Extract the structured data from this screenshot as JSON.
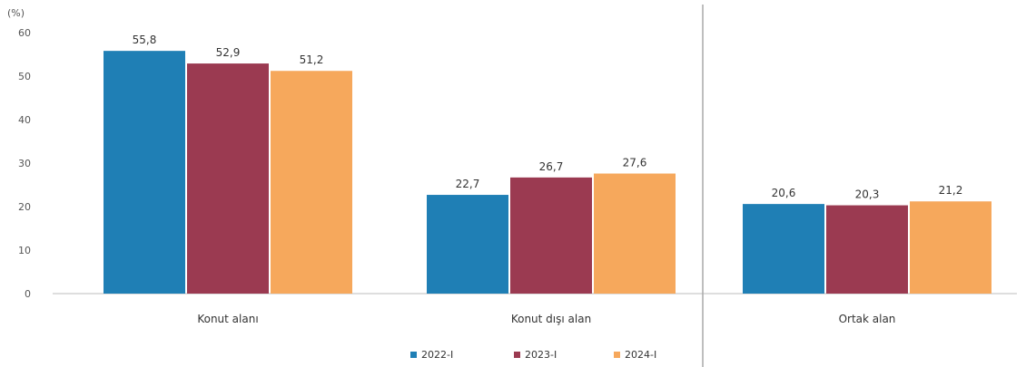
{
  "chart_data": {
    "type": "bar",
    "unit_label": "(%)",
    "categories": [
      "Konut alanı",
      "Konut dışı alan",
      "Ortak alan"
    ],
    "series": [
      {
        "name": "2022-I",
        "color": "#1f7fb5",
        "values": [
          55.8,
          22.7,
          20.6
        ],
        "labels": [
          "55,8",
          "22,7",
          "20,6"
        ]
      },
      {
        "name": "2023-I",
        "color": "#9b3a51",
        "values": [
          52.9,
          26.7,
          20.3
        ],
        "labels": [
          "52,9",
          "26,7",
          "20,3"
        ]
      },
      {
        "name": "2024-I",
        "color": "#f6a85c",
        "values": [
          51.2,
          27.6,
          21.2
        ],
        "labels": [
          "51,2",
          "27,6",
          "21,2"
        ]
      }
    ],
    "yticks": [
      0,
      10,
      20,
      30,
      40,
      50,
      60
    ],
    "ylim": [
      0,
      60
    ],
    "xlabel": "",
    "ylabel": "",
    "grid": false,
    "legend_position": "bottom"
  }
}
